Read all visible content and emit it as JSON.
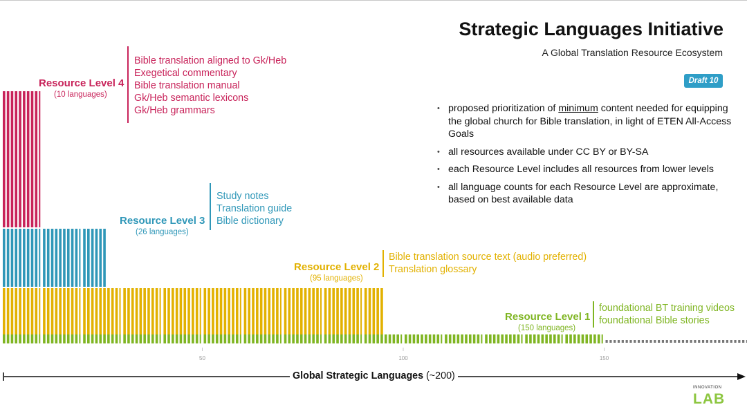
{
  "header": {
    "title": "Strategic Languages Initiative",
    "subtitle": "A Global Translation Resource Ecosystem",
    "badge": "Draft 10"
  },
  "bullets": [
    {
      "before": "proposed prioritization of ",
      "underlined": "minimum",
      "after": " content needed for equipping the global church for Bible translation, in light of ETEN All-Access Goals"
    },
    {
      "text": "all resources available under CC BY or BY-SA"
    },
    {
      "text": "each Resource Level includes all resources from lower levels"
    },
    {
      "text": "all language counts for each Resource Level are approximate, based on best available data"
    }
  ],
  "levels": [
    {
      "name": "Resource Level 4",
      "count_label": "(10 languages)",
      "languages": 10,
      "color": "#c8235a",
      "resources": [
        "Bible translation aligned to Gk/Heb",
        "Exegetical commentary",
        "Bible translation manual",
        "Gk/Heb semantic lexicons",
        "Gk/Heb grammars"
      ]
    },
    {
      "name": "Resource Level 3",
      "count_label": "(26 languages)",
      "languages": 26,
      "color": "#2f97b8",
      "resources": [
        "Study notes",
        "Translation guide",
        "Bible dictionary"
      ]
    },
    {
      "name": "Resource Level 2",
      "count_label": "(95 languages)",
      "languages": 95,
      "color": "#e2b100",
      "resources": [
        "Bible translation source text (audio preferred)",
        "Translation glossary"
      ]
    },
    {
      "name": "Resource Level 1",
      "count_label": "(150 languages)",
      "languages": 150,
      "color": "#7fb522",
      "resources": [
        "foundational BT training videos",
        "foundational Bible stories"
      ]
    }
  ],
  "chart_data": {
    "type": "bar",
    "x_range": [
      0,
      200
    ],
    "x_ticks": [
      "50",
      "100",
      "150"
    ],
    "total_languages": 200,
    "series": [
      {
        "name": "Resource Level 1",
        "languages": 150,
        "color": "#7fb522"
      },
      {
        "name": "Resource Level 2",
        "languages": 95,
        "color": "#e2b100"
      },
      {
        "name": "Resource Level 3",
        "languages": 26,
        "color": "#2f97b8"
      },
      {
        "name": "Resource Level 4",
        "languages": 10,
        "color": "#c8235a"
      }
    ],
    "remainder_color": "#777777"
  },
  "axis": {
    "label_bold": "Global Strategic Languages",
    "label_rest": " (~200)"
  },
  "logo": {
    "top": "INNOVATION",
    "main": "LAB"
  }
}
